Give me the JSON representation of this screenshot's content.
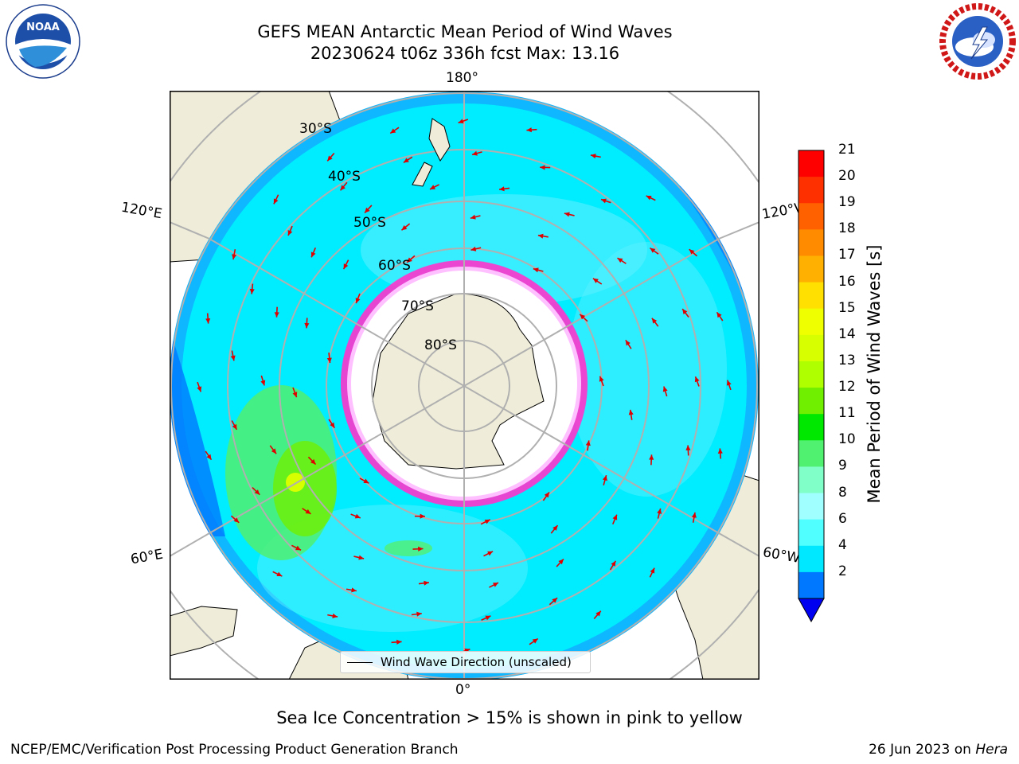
{
  "header": {
    "title_line1": "GEFS MEAN Antarctic Mean Period of Wind Waves",
    "title_line2": "20230624 t06z 336h fcst   Max: 13.16"
  },
  "logos": {
    "left": {
      "name": "noaa-logo",
      "text": "NOAA",
      "ring_text": "NATIONAL OCEANIC AND ATMOSPHERIC ADMINISTRATION · U.S. DEPARTMENT OF COMMERCE"
    },
    "right": {
      "name": "nws-logo",
      "ring_text": "NATIONAL WEATHER SERVICE"
    }
  },
  "map": {
    "longitude_labels": {
      "top": "180°",
      "upper_left": "120°E",
      "upper_right": "120°W",
      "lower_left": "60°E",
      "lower_right": "60°W",
      "bottom": "0°"
    },
    "latitude_labels": [
      "30°S",
      "40°S",
      "50°S",
      "60°S",
      "70°S",
      "80°S"
    ],
    "legend_label": "Wind Wave Direction (unscaled)"
  },
  "colorbar": {
    "title": "Mean Period of Wind Waves [s]",
    "ticks": [
      "21",
      "20",
      "19",
      "18",
      "17",
      "16",
      "15",
      "14",
      "13",
      "12",
      "11",
      "10",
      "9",
      "8",
      "6",
      "4",
      "2"
    ],
    "colors_top_to_bottom": [
      "#ff0000",
      "#ff3000",
      "#ff6000",
      "#ff8c00",
      "#ffb000",
      "#ffe000",
      "#f0ff00",
      "#d8ff00",
      "#b0ff00",
      "#70f000",
      "#00e800",
      "#50f070",
      "#80ffc8",
      "#a0ffff",
      "#50ffff",
      "#00e8ff",
      "#0078ff"
    ],
    "extend_color": "#0000f0"
  },
  "caption": "Sea Ice Concentration > 15% is shown in pink to yellow",
  "footer": {
    "left": "NCEP/EMC/Verification Post Processing Product Generation Branch",
    "right_date": "26 Jun 2023 on",
    "right_host": "Hera"
  }
}
